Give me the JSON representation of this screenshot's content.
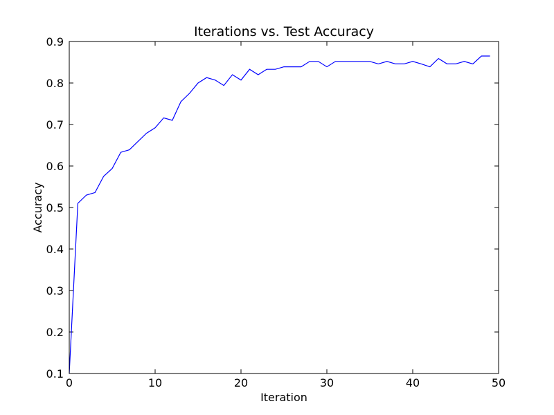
{
  "chart_data": {
    "type": "line",
    "title": "Iterations vs. Test Accuracy",
    "xlabel": "Iteration",
    "ylabel": "Accuracy",
    "xlim": [
      0,
      50
    ],
    "ylim": [
      0.1,
      0.9
    ],
    "xticks": [
      "0",
      "10",
      "20",
      "30",
      "40",
      "50"
    ],
    "yticks": [
      "0.1",
      "0.2",
      "0.3",
      "0.4",
      "0.5",
      "0.6",
      "0.7",
      "0.8",
      "0.9"
    ],
    "grid": false,
    "line_color": "#0000ff",
    "series": [
      {
        "x": [
          0,
          1,
          2,
          3,
          4,
          5,
          6,
          7,
          8,
          9,
          10,
          11,
          12,
          13,
          14,
          15,
          16,
          17,
          18,
          19,
          20,
          21,
          22,
          23,
          24,
          25,
          26,
          27,
          28,
          29,
          30,
          31,
          32,
          33,
          34,
          35,
          36,
          37,
          38,
          39,
          40,
          41,
          42,
          43,
          44,
          45,
          46,
          47,
          48,
          49
        ],
        "values": [
          0.1,
          0.51,
          0.53,
          0.536,
          0.575,
          0.594,
          0.633,
          0.639,
          0.659,
          0.679,
          0.692,
          0.716,
          0.71,
          0.755,
          0.775,
          0.8,
          0.813,
          0.807,
          0.794,
          0.82,
          0.807,
          0.833,
          0.82,
          0.833,
          0.833,
          0.839,
          0.839,
          0.839,
          0.852,
          0.852,
          0.839,
          0.852,
          0.852,
          0.852,
          0.852,
          0.852,
          0.846,
          0.852,
          0.846,
          0.846,
          0.852,
          0.846,
          0.839,
          0.859,
          0.846,
          0.846,
          0.852,
          0.846,
          0.865,
          0.865
        ]
      }
    ]
  }
}
